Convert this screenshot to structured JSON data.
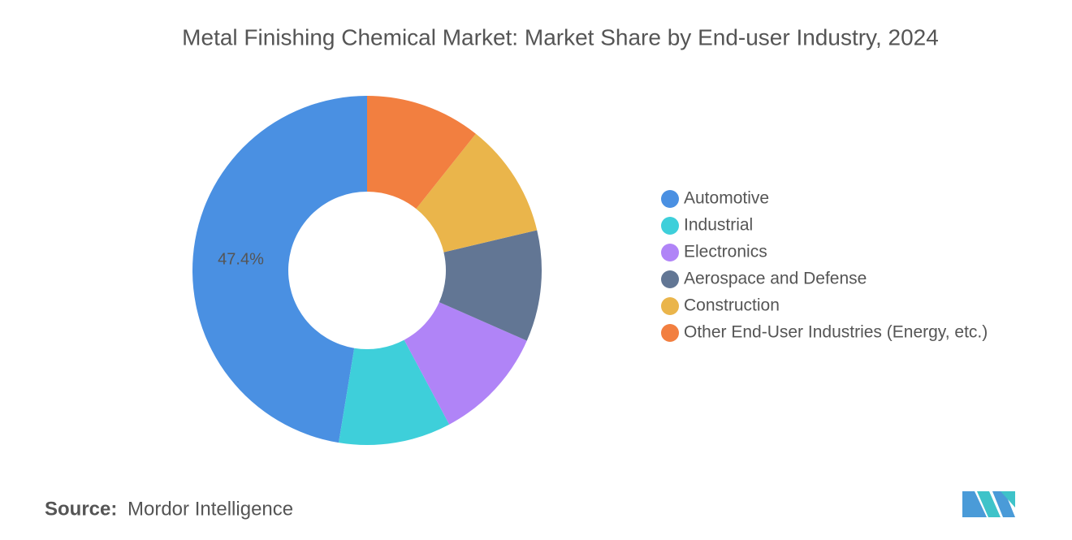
{
  "chart_data": {
    "type": "donut",
    "title": "Metal Finishing Chemical Market: Market Share by End-user Industry, 2024",
    "categories": [
      "Automotive",
      "Industrial",
      "Electronics",
      "Aerospace and Defense",
      "Construction",
      "Other End-User Industries (Energy, etc.)"
    ],
    "values": [
      47.4,
      10.4,
      10.6,
      10.3,
      10.6,
      10.7
    ],
    "value_labels": [
      "47.4%",
      null,
      null,
      null,
      null,
      null
    ],
    "colors": [
      "#4a90e2",
      "#3ecfda",
      "#b084f7",
      "#627694",
      "#eab54b",
      "#f27f40"
    ],
    "legend": "right"
  },
  "source": {
    "label": "Source:",
    "text": "Mordor Intelligence"
  }
}
